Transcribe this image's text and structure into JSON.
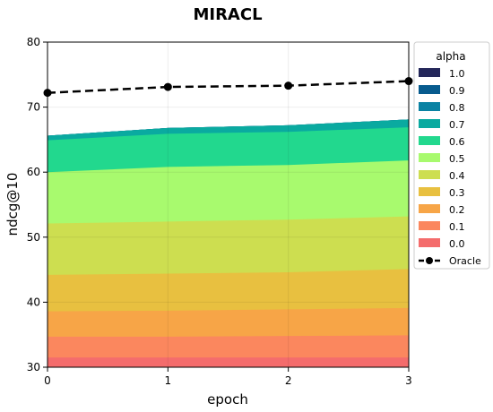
{
  "chart_data": {
    "type": "area",
    "title": "MIRACL",
    "xlabel": "epoch",
    "ylabel": "ndcg@10",
    "x": [
      0,
      1,
      2,
      3
    ],
    "xticks": [
      "0",
      "1",
      "2",
      "3"
    ],
    "ylim": [
      30,
      80
    ],
    "yticks": [
      "30",
      "40",
      "50",
      "60",
      "70",
      "80"
    ],
    "grid": true,
    "legend_title": "alpha",
    "legend_position": "right",
    "series": [
      {
        "name": "1.0",
        "color": "#24275a",
        "values": [
          65.6,
          66.8,
          67.2,
          68.1
        ]
      },
      {
        "name": "0.9",
        "color": "#075b8e",
        "values": [
          65.6,
          66.8,
          67.2,
          68.1
        ]
      },
      {
        "name": "0.8",
        "color": "#0a82a3",
        "values": [
          65.6,
          66.8,
          67.2,
          68.1
        ]
      },
      {
        "name": "0.7",
        "color": "#0aaaa0",
        "values": [
          65.6,
          66.8,
          67.2,
          68.1
        ]
      },
      {
        "name": "0.6",
        "color": "#22d88e",
        "values": [
          64.9,
          65.9,
          66.2,
          66.9
        ]
      },
      {
        "name": "0.5",
        "color": "#a8fa6e",
        "values": [
          60.0,
          60.8,
          61.1,
          61.8
        ]
      },
      {
        "name": "0.4",
        "color": "#cdde50",
        "values": [
          52.1,
          52.4,
          52.7,
          53.2
        ]
      },
      {
        "name": "0.3",
        "color": "#e8c040",
        "values": [
          44.2,
          44.4,
          44.6,
          45.1
        ]
      },
      {
        "name": "0.2",
        "color": "#f7a547",
        "values": [
          38.6,
          38.7,
          38.9,
          39.1
        ]
      },
      {
        "name": "0.1",
        "color": "#fb875e",
        "values": [
          34.7,
          34.7,
          34.8,
          34.9
        ]
      },
      {
        "name": "0.0",
        "color": "#f46c6c",
        "values": [
          31.5,
          31.5,
          31.5,
          31.5
        ]
      }
    ],
    "oracle": {
      "name": "Oracle",
      "color": "#000000",
      "values": [
        72.2,
        73.1,
        73.3,
        74.0
      ]
    }
  }
}
